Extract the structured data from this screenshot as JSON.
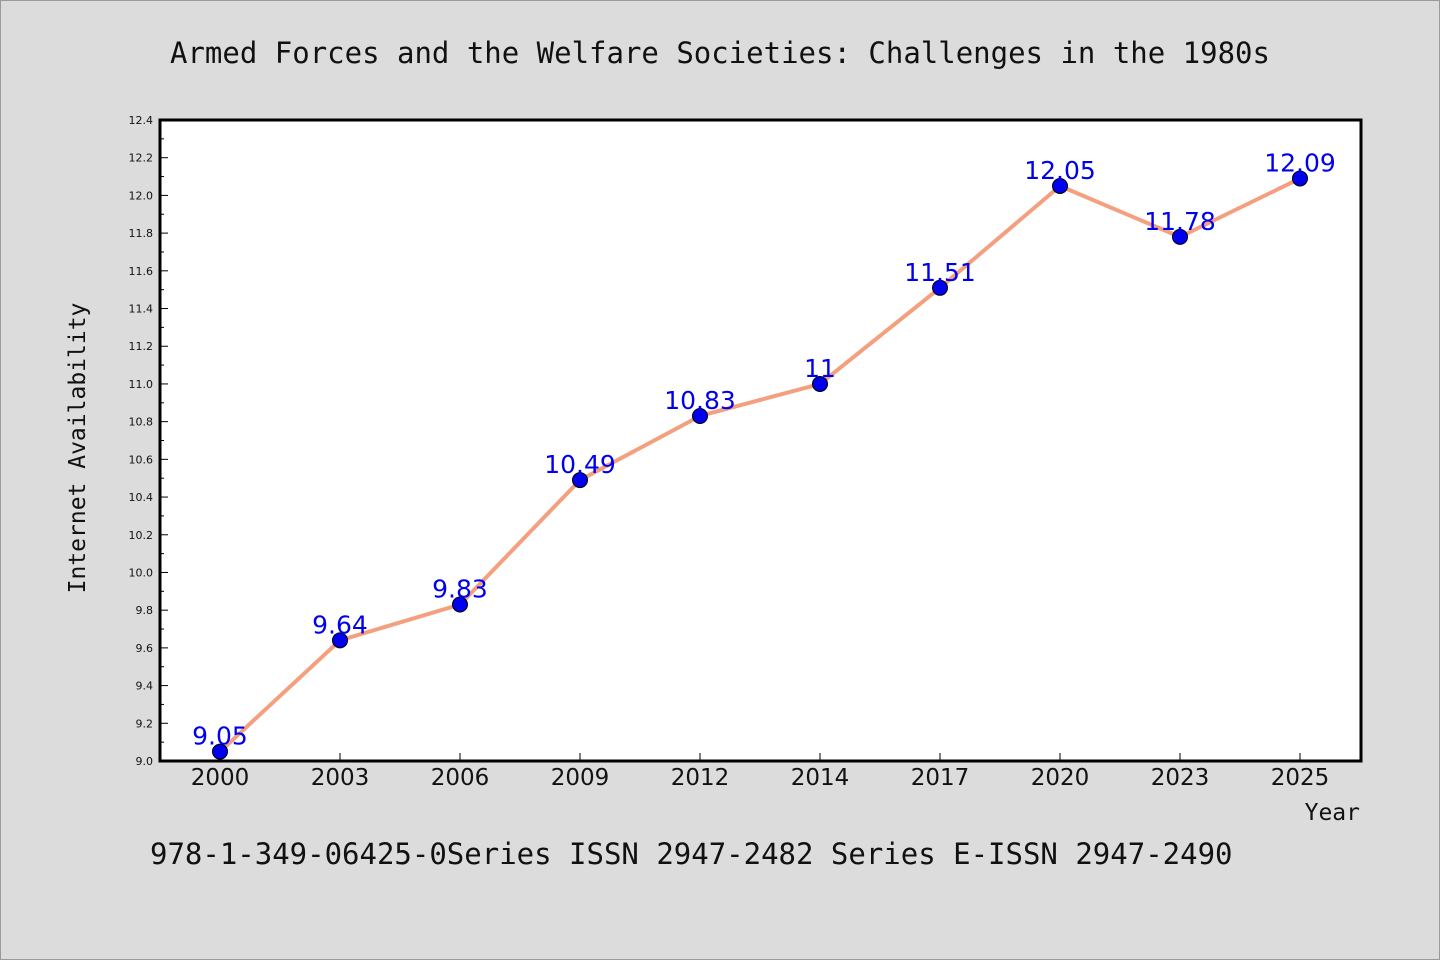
{
  "title": "Armed Forces and the Welfare Societies: Challenges in the 1980s",
  "footer": "978-1-349-06425-0Series ISSN 2947-2482 Series E-ISSN 2947-2490",
  "colors": {
    "background": "#dcdcdc",
    "plot_background": "#ffffff",
    "line": "#f4a07e",
    "marker": "#0000ee",
    "data_label": "#0000ee"
  },
  "chart_data": {
    "type": "line",
    "title": "Armed Forces and the Welfare Societies: Challenges in the 1980s",
    "xlabel": "Year",
    "ylabel": "Internet Availability",
    "categories": [
      "2000",
      "2003",
      "2006",
      "2009",
      "2012",
      "2014",
      "2017",
      "2020",
      "2023",
      "2025"
    ],
    "values": [
      9.05,
      9.64,
      9.83,
      10.49,
      10.83,
      11,
      11.51,
      12.05,
      11.78,
      12.09
    ],
    "data_labels": [
      "9.05",
      "9.64",
      "9.83",
      "10.49",
      "10.83",
      "11",
      "11.51",
      "12.05",
      "11.78",
      "12.09"
    ],
    "ylim": [
      9.0,
      12.4
    ],
    "yticks": [
      "9.0",
      "9.2",
      "9.4",
      "9.6",
      "9.8",
      "10.0",
      "10.2",
      "10.4",
      "10.6",
      "10.8",
      "11.0",
      "11.2",
      "11.4",
      "11.6",
      "11.8",
      "12.0",
      "12.2",
      "12.4"
    ],
    "grid": false,
    "legend": "none"
  }
}
